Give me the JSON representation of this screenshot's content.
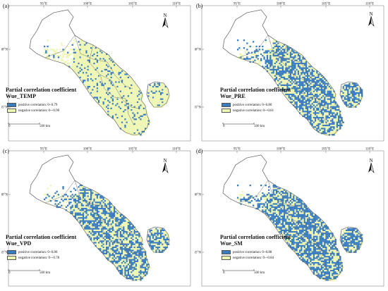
{
  "axes": {
    "lon_ticks": [
      "95°E",
      "100°E",
      "105°E",
      "110°E"
    ],
    "lat_ticks": [
      "40°N",
      "35°N"
    ]
  },
  "north_label": "N",
  "colors": {
    "positive": "#3a7cc0",
    "negative": "#eef6b4",
    "outline": "#666666",
    "land": "#ffffff"
  },
  "scale_bar": {
    "zero": "0",
    "end": "500 km"
  },
  "panels": [
    {
      "label": "(a)",
      "title": "Partial correlation coefficient",
      "variable": "Wue_TEMP",
      "legend_positive": "positive correlation: 0~0.79",
      "legend_negative": "negative correlation: 0~-0.90",
      "positive_share": 0.12
    },
    {
      "label": "(b)",
      "title": "Partial correlation coefficient",
      "variable": "Wue_PRE",
      "legend_positive": "positive correlation: 0~0.80",
      "legend_negative": "negative correlation: 0~-0.81",
      "positive_share": 0.55
    },
    {
      "label": "(c)",
      "title": "Partial correlation coefficient",
      "variable": "Wue_VPD",
      "legend_positive": "positive correlation: 0~0.80",
      "legend_negative": "negative correlation: 0~-0.78",
      "positive_share": 0.5
    },
    {
      "label": "(d)",
      "title": "Partial correlation coefficient",
      "variable": "Wue_SM",
      "legend_positive": "positive correlation: 0~0.88",
      "legend_negative": "negative correlation: 0~-0.84",
      "positive_share": 0.62
    }
  ]
}
